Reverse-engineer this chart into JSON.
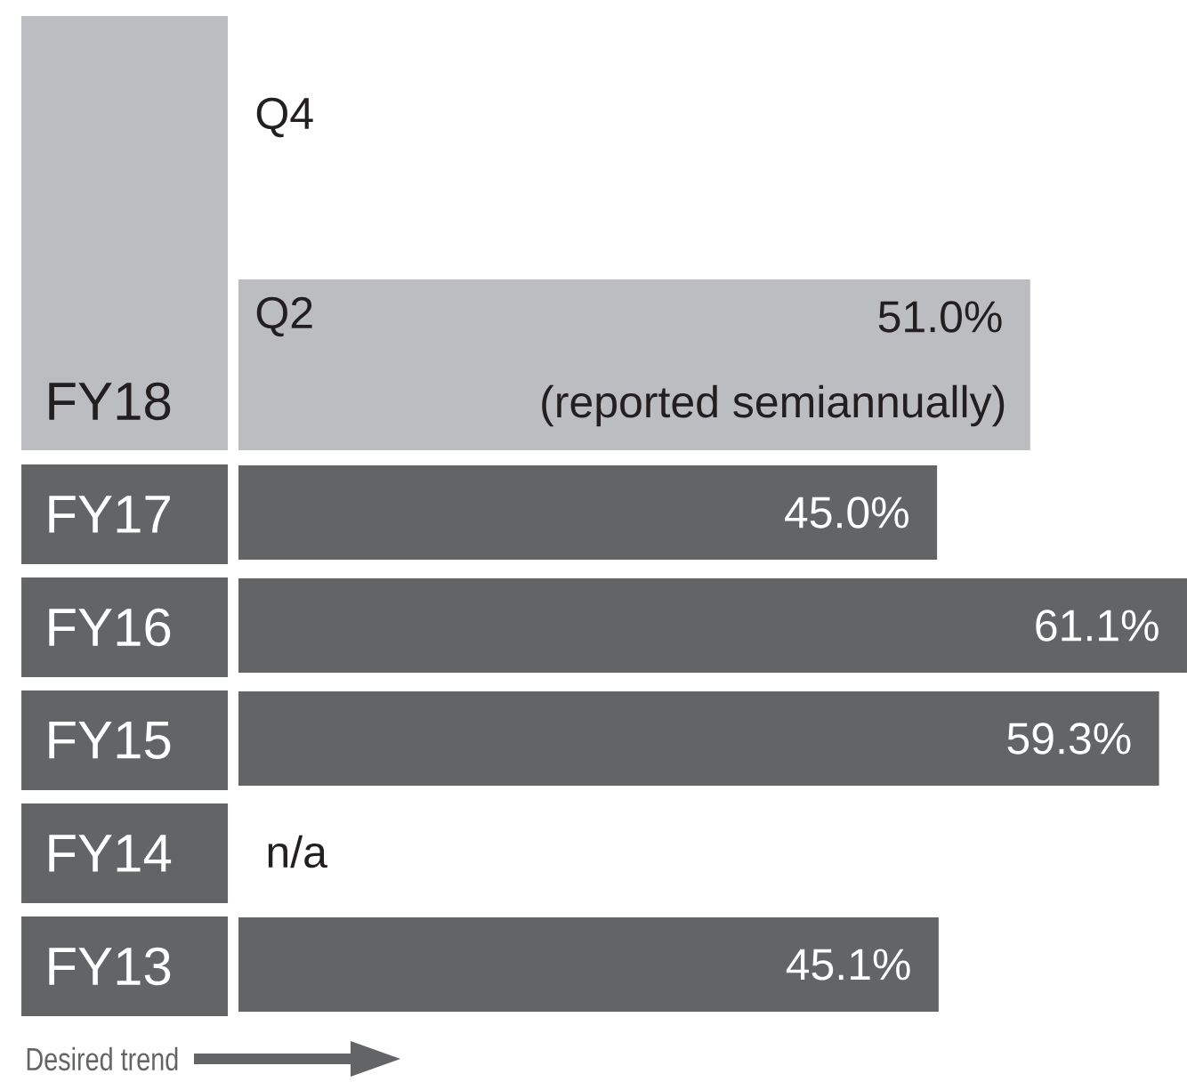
{
  "chart_data": {
    "type": "bar",
    "orientation": "horizontal",
    "categories": [
      "FY18",
      "FY17",
      "FY16",
      "FY15",
      "FY14",
      "FY13"
    ],
    "values": [
      51.0,
      45.0,
      61.1,
      59.3,
      null,
      45.1
    ],
    "colors": [
      "#bcbdc0",
      "#636466",
      "#636466",
      "#636466",
      "#636466",
      "#636466"
    ],
    "value_labels": [
      "51.0%",
      "45.0%",
      "61.1%",
      "59.3%",
      "n/a",
      "45.1%"
    ],
    "annotations": [
      "Q4",
      "Q2",
      "(reported semiannually)",
      "Desired trend"
    ]
  }
}
